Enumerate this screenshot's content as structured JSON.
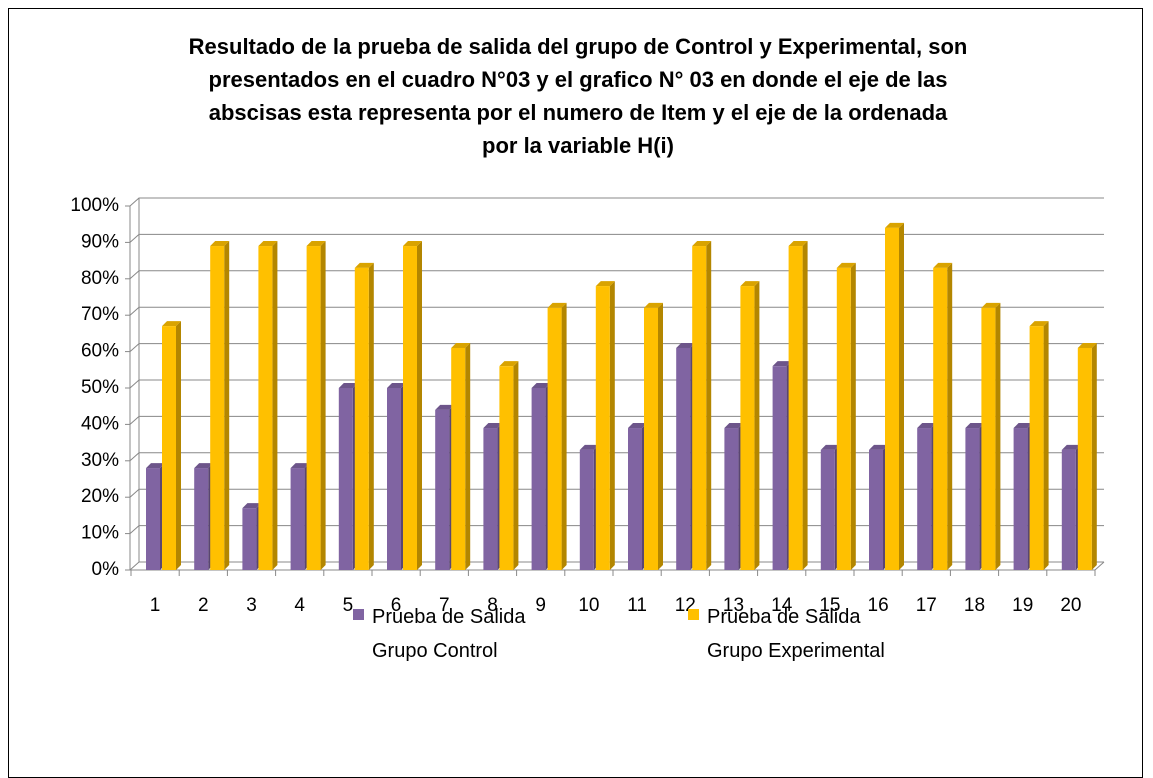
{
  "chart_data": {
    "type": "bar",
    "title": "Resultado de la prueba de salida del grupo de Control y Experimental, son presentados en el cuadro  N°03 y el grafico N° 03 en donde el eje de las abscisas esta representa  por el numero de Item y el eje de la ordenada por la variable H(i)",
    "categories": [
      "1",
      "2",
      "3",
      "4",
      "5",
      "6",
      "7",
      "8",
      "9",
      "10",
      "11",
      "12",
      "13",
      "14",
      "15",
      "16",
      "17",
      "18",
      "19",
      "20"
    ],
    "series": [
      {
        "name": "Prueba de Salida Grupo Control",
        "color": "#8064a2",
        "values": [
          28,
          28,
          17,
          28,
          50,
          50,
          44,
          39,
          50,
          33,
          39,
          61,
          39,
          56,
          33,
          33,
          39,
          39,
          39,
          33
        ]
      },
      {
        "name": "Prueba de Salida Grupo Experimental",
        "color": "#ffc000",
        "values": [
          67,
          89,
          89,
          89,
          83,
          89,
          61,
          56,
          72,
          78,
          72,
          89,
          78,
          89,
          83,
          94,
          83,
          72,
          67,
          61
        ]
      }
    ],
    "ylim": [
      0,
      100
    ],
    "yticks": [
      {
        "value": 0,
        "label": "0%"
      },
      {
        "value": 10,
        "label": "10%"
      },
      {
        "value": 20,
        "label": "20%"
      },
      {
        "value": 30,
        "label": "30%"
      },
      {
        "value": 40,
        "label": "40%"
      },
      {
        "value": 50,
        "label": "50%"
      },
      {
        "value": 60,
        "label": "60%"
      },
      {
        "value": 70,
        "label": "70%"
      },
      {
        "value": 80,
        "label": "80%"
      },
      {
        "value": 90,
        "label": "90%"
      },
      {
        "value": 100,
        "label": "100%"
      }
    ],
    "grid": true,
    "legend": "bottom"
  }
}
